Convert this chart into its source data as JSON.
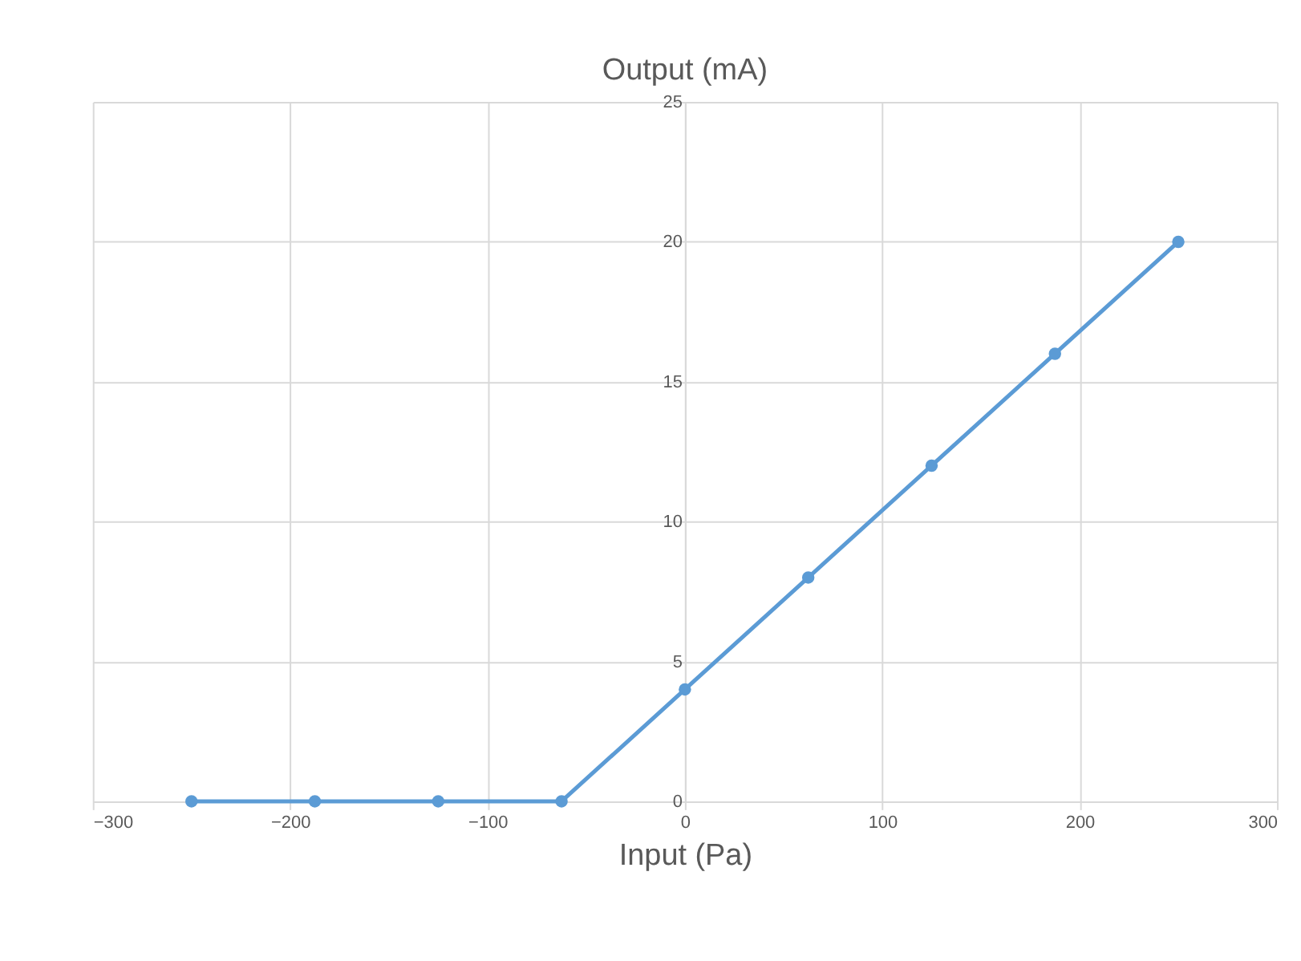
{
  "chart_data": {
    "type": "line",
    "title": "Output (mA)",
    "xlabel": "Input (Pa)",
    "x": [
      -250,
      -187.5,
      -125,
      -62.5,
      0,
      62.5,
      125,
      187.5,
      250
    ],
    "series": [
      {
        "color": "#5b9bd5",
        "values": [
          0,
          0,
          0,
          0,
          4,
          8,
          12,
          16,
          20
        ]
      }
    ],
    "xlim": [
      -300,
      300
    ],
    "xticks": [
      -300,
      -200,
      -100,
      0,
      100,
      200,
      300
    ],
    "ylim": [
      0,
      25
    ],
    "yticks": [
      0,
      5,
      10,
      15,
      20,
      25
    ],
    "grid": true,
    "marker": "circle",
    "line_style": "solid"
  }
}
